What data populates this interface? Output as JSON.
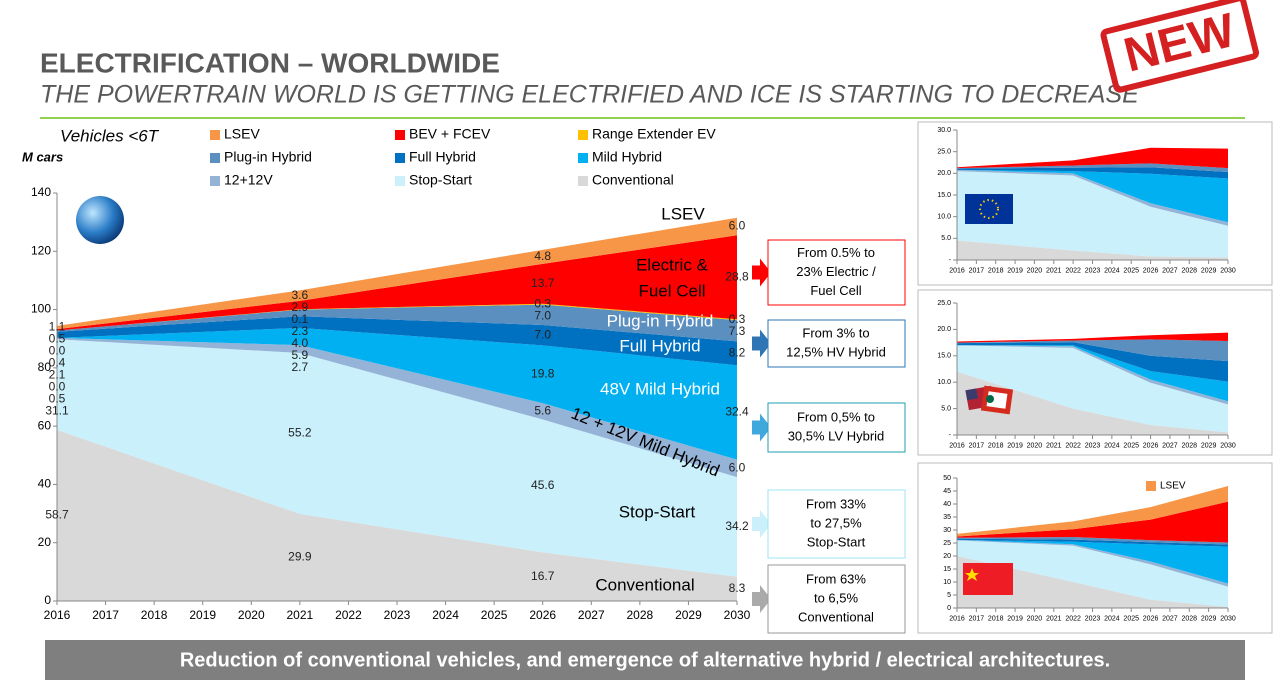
{
  "header": {
    "title": "ELECTRIFICATION – WORLDWIDE",
    "subtitle": "THE POWERTRAIN WORLD IS GETTING ELECTRIFIED AND ICE IS STARTING TO DECREASE"
  },
  "stamp": "NEW",
  "chart_data": [
    {
      "type": "area",
      "title": "Vehicles <6T",
      "ylabel": "M cars",
      "x": [
        2016,
        2021,
        2026,
        2030
      ],
      "xlim": [
        2016,
        2030
      ],
      "xticks": [
        2016,
        2017,
        2018,
        2019,
        2020,
        2021,
        2022,
        2023,
        2024,
        2025,
        2026,
        2027,
        2028,
        2029,
        2030
      ],
      "ylim": [
        0,
        140
      ],
      "yticks": [
        0,
        20,
        40,
        60,
        80,
        100,
        120,
        140
      ],
      "series": [
        {
          "name": "LSEV",
          "color": "#f79646",
          "values": [
            1.1,
            3.6,
            4.8,
            6.0
          ],
          "value_labels": [
            "1.1",
            "3.6",
            "4.8",
            "6.0"
          ]
        },
        {
          "name": "BEV + FCEV",
          "color": "#ff0000",
          "values": [
            0.5,
            2.9,
            13.7,
            28.8
          ],
          "value_labels": [
            "0.5",
            "2.9",
            "13.7",
            "28.8"
          ]
        },
        {
          "name": "Range Extender EV",
          "color": "#ffc000",
          "values": [
            0.0,
            0.1,
            0.3,
            0.3
          ],
          "value_labels": [
            "0.0",
            "0.1",
            "0.3",
            "0.3"
          ]
        },
        {
          "name": "Plug-in Hybrid",
          "color": "#5b8fc0",
          "values": [
            0.4,
            2.3,
            7.0,
            7.3
          ],
          "value_labels": [
            "0.4",
            "2.3",
            "7.0",
            "7.3"
          ]
        },
        {
          "name": "Full Hybrid",
          "color": "#0070c0",
          "values": [
            2.1,
            4.0,
            7.0,
            8.2
          ],
          "value_labels": [
            "2.1",
            "4.0",
            "7.0",
            "8.2"
          ]
        },
        {
          "name": "Mild Hybrid",
          "color": "#00b0f0",
          "values": [
            0.0,
            5.9,
            19.8,
            32.4
          ],
          "value_labels": [
            "0.0",
            "5.9",
            "19.8",
            "32.4"
          ]
        },
        {
          "name": "12+12V",
          "color": "#95b3d7",
          "values": [
            0.5,
            2.7,
            5.6,
            6.0
          ],
          "value_labels": [
            "0.5",
            "2.7",
            "5.6",
            "6.0"
          ]
        },
        {
          "name": "Stop-Start",
          "color": "#c9f0fb",
          "values": [
            31.1,
            55.2,
            45.6,
            34.2
          ],
          "value_labels": [
            "31.1",
            "55.2",
            "45.6",
            "34.2"
          ]
        },
        {
          "name": "Conventional",
          "color": "#d9d9d9",
          "values": [
            58.7,
            29.9,
            16.7,
            8.3
          ],
          "value_labels": [
            "58.7",
            "29.9",
            "16.7",
            "8.3"
          ]
        }
      ],
      "annotations": [
        "LSEV",
        "Electric &",
        "Fuel Cell",
        "Plug-in Hybrid",
        "Full Hybrid",
        "48V Mild Hybrid",
        "12 + 12V Mild Hybrid",
        "Stop-Start",
        "Conventional"
      ]
    },
    {
      "type": "area",
      "x": [
        2016,
        2022,
        2026,
        2030
      ],
      "xlim": [
        2016,
        2030
      ],
      "xticks": [
        2016,
        2017,
        2018,
        2019,
        2020,
        2021,
        2022,
        2023,
        2024,
        2025,
        2026,
        2027,
        2028,
        2029,
        2030
      ],
      "ylim": [
        0,
        30
      ],
      "yticks": [
        {
          "value": 0,
          "label": "-"
        },
        {
          "value": 5,
          "label": "5.0"
        },
        {
          "value": 10,
          "label": "10.0"
        },
        {
          "value": 15,
          "label": "15.0"
        },
        {
          "value": 20,
          "label": "20.0"
        },
        {
          "value": 25,
          "label": "25.0"
        },
        {
          "value": 30,
          "label": "30.0"
        }
      ],
      "series": [
        {
          "color": "#ff0000",
          "values": [
            0.2,
            1.2,
            3.6,
            4.5
          ]
        },
        {
          "color": "#5b8fc0",
          "values": [
            0.1,
            0.5,
            0.9,
            0.9
          ]
        },
        {
          "color": "#0070c0",
          "values": [
            0.3,
            0.8,
            1.5,
            1.5
          ]
        },
        {
          "color": "#00b0f0",
          "values": [
            0,
            0.5,
            6.8,
            10.1
          ]
        },
        {
          "color": "#95b3d7",
          "values": [
            0.3,
            0.5,
            0.8,
            0.8
          ]
        },
        {
          "color": "#c9f0fb",
          "values": [
            16,
            17.3,
            11.5,
            7.3
          ]
        },
        {
          "color": "#d9d9d9",
          "values": [
            4.5,
            2.2,
            0.8,
            0.6
          ]
        }
      ]
    },
    {
      "type": "area",
      "x": [
        2016,
        2022,
        2026,
        2030
      ],
      "xlim": [
        2016,
        2030
      ],
      "xticks": [
        2016,
        2017,
        2018,
        2019,
        2020,
        2021,
        2022,
        2023,
        2024,
        2025,
        2026,
        2027,
        2028,
        2029,
        2030
      ],
      "ylim": [
        0,
        25
      ],
      "yticks": [
        {
          "value": 0,
          "label": "-"
        },
        {
          "value": 5,
          "label": "5.0"
        },
        {
          "value": 10,
          "label": "10.0"
        },
        {
          "value": 15,
          "label": "15.0"
        },
        {
          "value": 20,
          "label": "20.0"
        },
        {
          "value": 25,
          "label": "25.0"
        }
      ],
      "series": [
        {
          "color": "#ff0000",
          "values": [
            0.2,
            0.3,
            0.8,
            1.6
          ]
        },
        {
          "color": "#5b8fc0",
          "values": [
            0.1,
            0.3,
            3.1,
            3.8
          ]
        },
        {
          "color": "#0070c0",
          "values": [
            0.4,
            0.6,
            2.9,
            3.9
          ]
        },
        {
          "color": "#00b0f0",
          "values": [
            0,
            0.2,
            1.6,
            3.7
          ]
        },
        {
          "color": "#95b3d7",
          "values": [
            0,
            0.3,
            0.6,
            0.6
          ]
        },
        {
          "color": "#c9f0fb",
          "values": [
            5,
            11.5,
            8.0,
            5.3
          ]
        },
        {
          "color": "#d9d9d9",
          "values": [
            12,
            5,
            1.9,
            0.5
          ]
        }
      ]
    },
    {
      "type": "area",
      "x": [
        2016,
        2022,
        2026,
        2030
      ],
      "xlim": [
        2016,
        2030
      ],
      "xticks": [
        2016,
        2017,
        2018,
        2019,
        2020,
        2021,
        2022,
        2023,
        2024,
        2025,
        2026,
        2027,
        2028,
        2029,
        2030
      ],
      "ylim": [
        0,
        50
      ],
      "yticks": [
        0,
        5,
        10,
        15,
        20,
        25,
        30,
        35,
        40,
        45,
        50
      ],
      "series": [
        {
          "name": "LSEV",
          "color": "#f79646",
          "values": [
            1,
            3,
            4.8,
            6.0
          ]
        },
        {
          "color": "#ff0000",
          "values": [
            0.5,
            3,
            7.9,
            15.7
          ]
        },
        {
          "color": "#5b8fc0",
          "values": [
            0.3,
            1,
            0.8,
            0.8
          ]
        },
        {
          "color": "#0070c0",
          "values": [
            0.5,
            0.8,
            0.8,
            0.8
          ]
        },
        {
          "color": "#00b0f0",
          "values": [
            0,
            1,
            6.6,
            14.2
          ]
        },
        {
          "color": "#95b3d7",
          "values": [
            0.2,
            0.5,
            1.1,
            1.2
          ]
        },
        {
          "color": "#c9f0fb",
          "values": [
            6,
            14,
            13.6,
            7.8
          ]
        },
        {
          "color": "#d9d9d9",
          "values": [
            20,
            10,
            3.2,
            0.4
          ]
        }
      ]
    }
  ],
  "callouts": [
    {
      "lines": [
        "From 0.5% to",
        "23% Electric /",
        "Fuel Cell"
      ]
    },
    {
      "lines": [
        "From 3% to",
        "12,5% HV Hybrid"
      ]
    },
    {
      "lines": [
        "From 0,5% to",
        "30,5% LV Hybrid"
      ]
    },
    {
      "lines": [
        "From 33%",
        "to 27,5%",
        "Stop-Start"
      ]
    },
    {
      "lines": [
        "From 63%",
        "to 6,5%",
        "Conventional"
      ]
    }
  ],
  "footer": "Reduction of conventional vehicles, and emergence of alternative hybrid / electrical architectures."
}
